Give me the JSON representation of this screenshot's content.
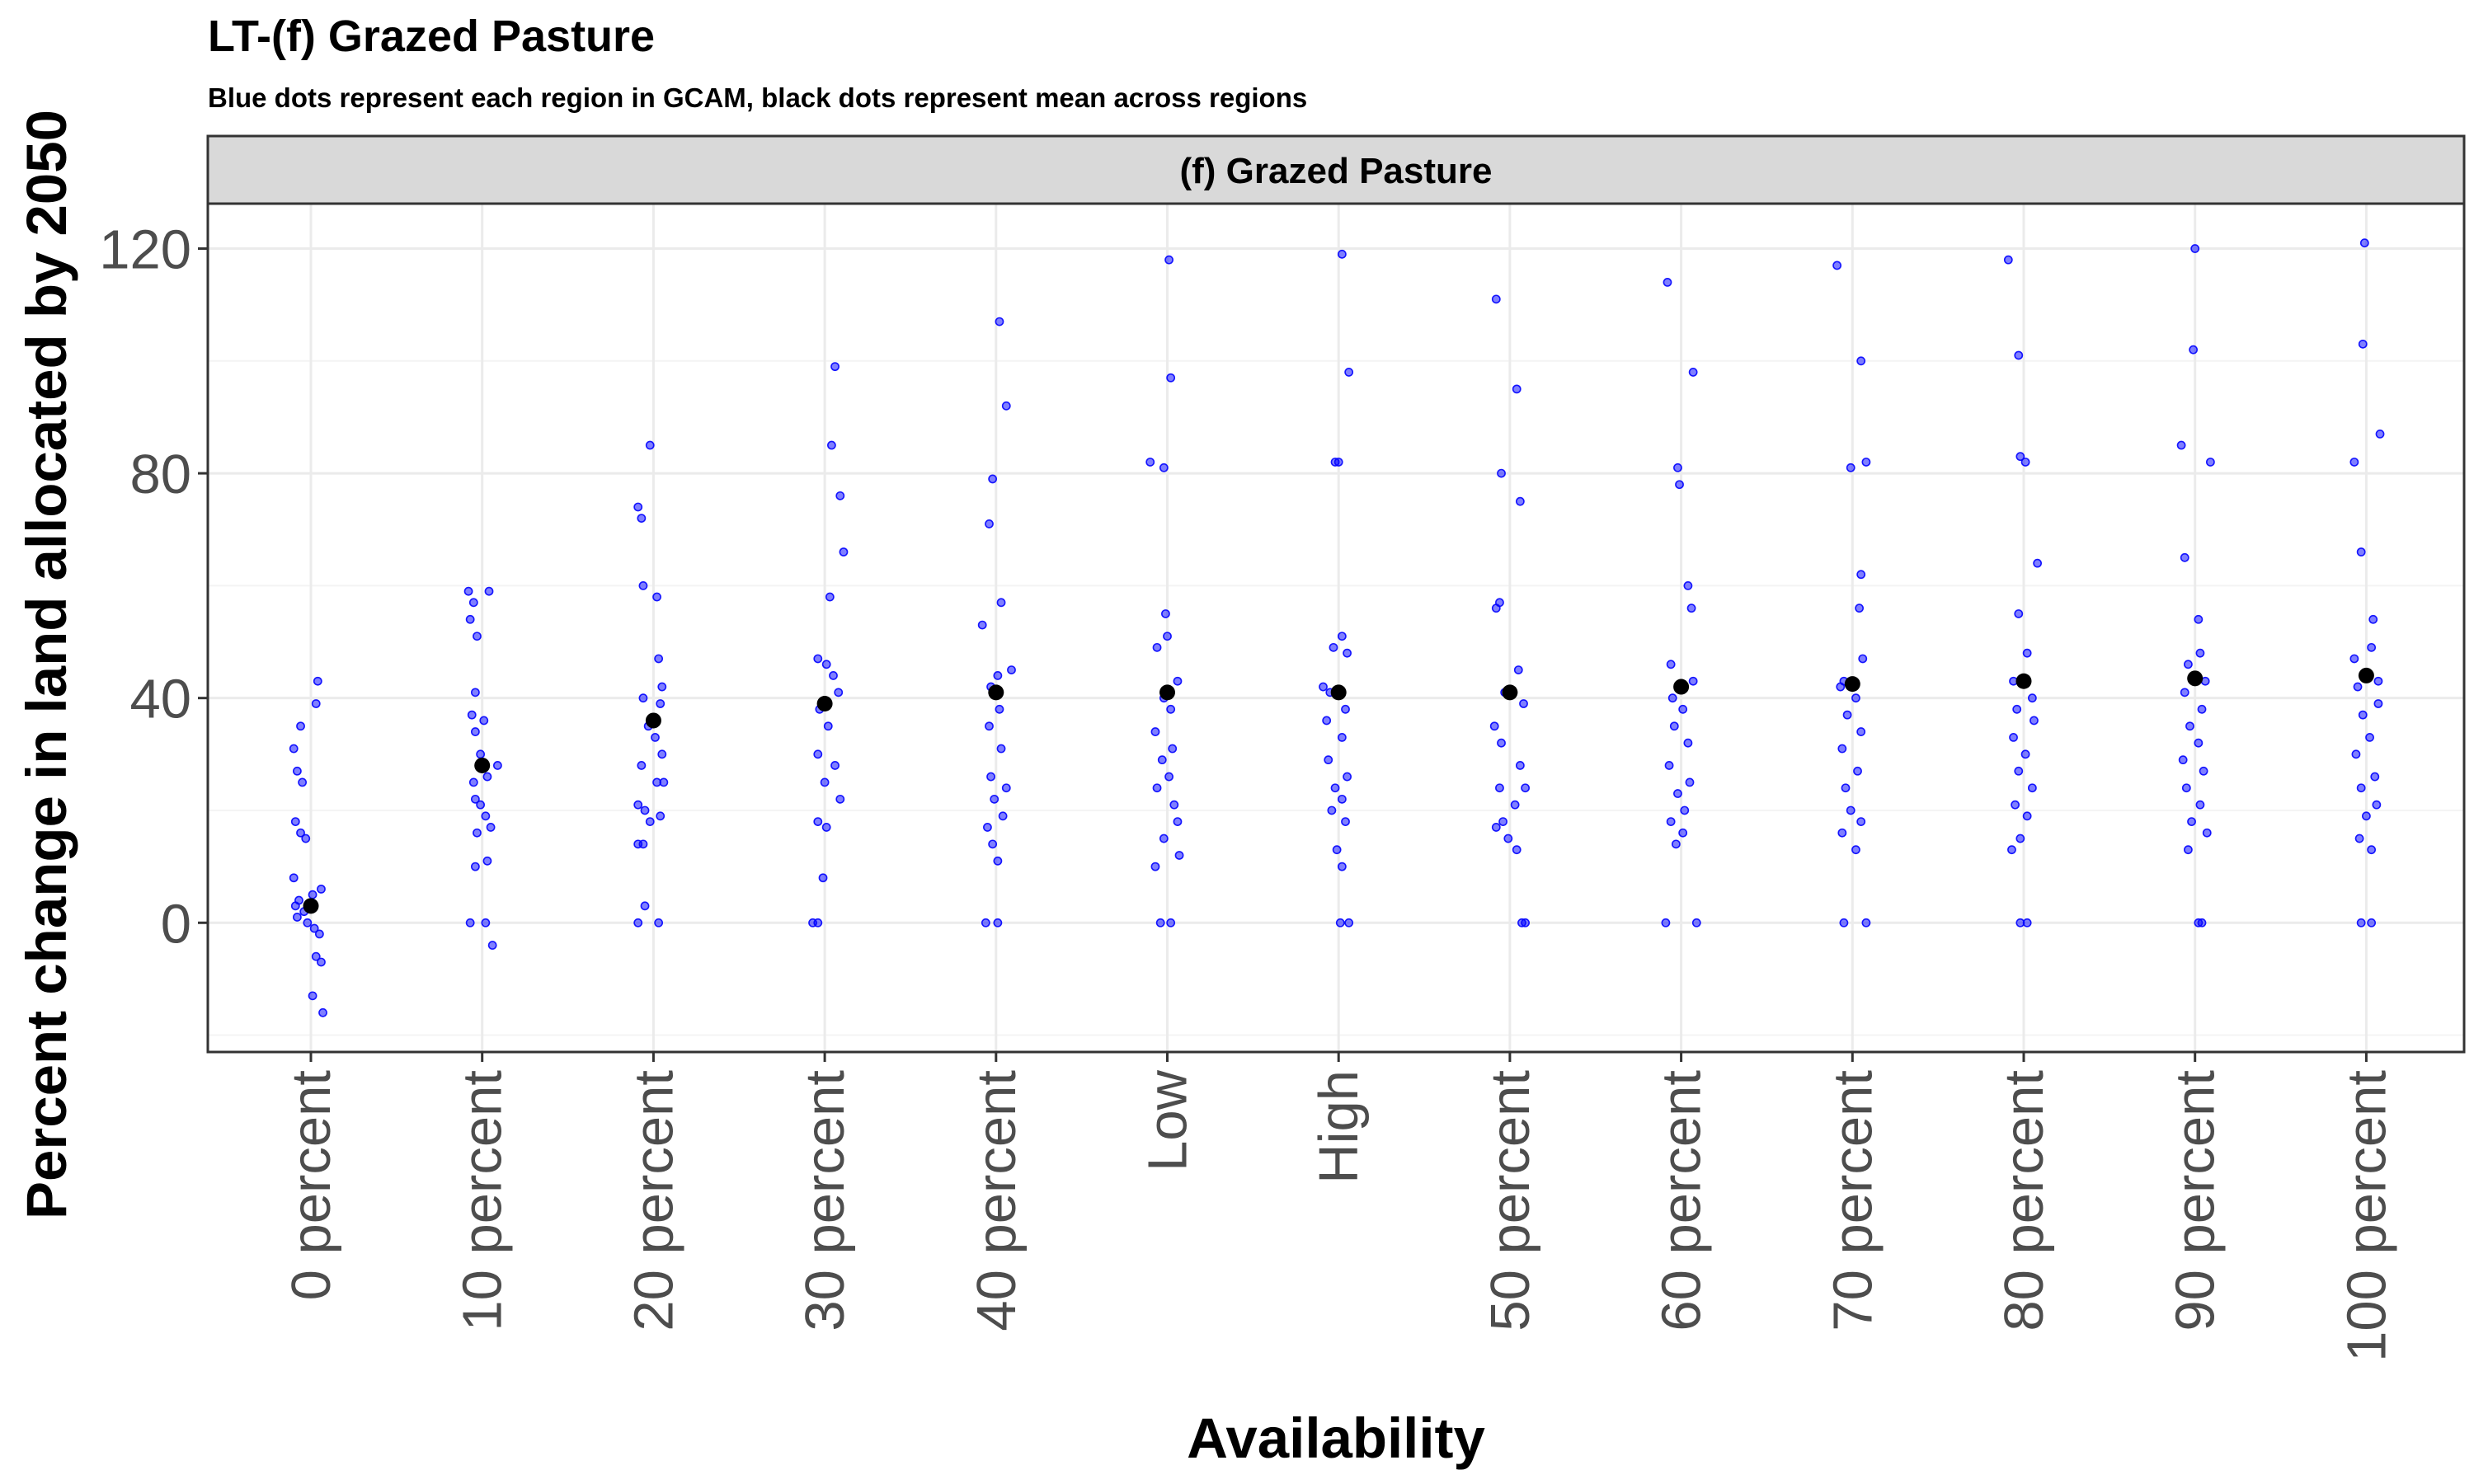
{
  "chart_data": {
    "type": "scatter",
    "title": "LT-(f) Grazed Pasture",
    "subtitle": "Blue dots represent each region in GCAM, black dots represent mean across regions",
    "facet_label": "(f) Grazed Pasture",
    "xlabel": "Availability",
    "ylabel": "Percent change in land allocated by 2050",
    "ylim": [
      -23,
      128
    ],
    "y_ticks": [
      0,
      40,
      80,
      120
    ],
    "grid": true,
    "categories": [
      "0 percent",
      "10 percent",
      "20 percent",
      "30 percent",
      "40 percent",
      "Low",
      "High",
      "50 percent",
      "60 percent",
      "70 percent",
      "80 percent",
      "90 percent",
      "100 percent"
    ],
    "colors": {
      "region_points": "#0000ff",
      "mean_points": "#000000",
      "strip_fill": "#d9d9d9",
      "grid_major": "#ebebeb",
      "grid_minor": "#f4f4f4"
    },
    "series": [
      {
        "name": "Blue dots represent each region in GCAM",
        "role": "regions",
        "points": [
          [
            -0.1,
            31
          ],
          [
            -0.08,
            27
          ],
          [
            -0.05,
            25
          ],
          [
            -0.09,
            18
          ],
          [
            -0.06,
            16
          ],
          [
            -0.03,
            15
          ],
          [
            -0.1,
            8
          ],
          [
            -0.07,
            4
          ],
          [
            -0.09,
            3
          ],
          [
            -0.04,
            2
          ],
          [
            -0.08,
            1
          ],
          [
            -0.02,
            0
          ],
          [
            0.02,
            -1
          ],
          [
            0.05,
            -2
          ],
          [
            0.03,
            -6
          ],
          [
            0.06,
            -7
          ],
          [
            0.01,
            -13
          ],
          [
            0.07,
            -16
          ],
          [
            0.03,
            39
          ],
          [
            0.04,
            43
          ],
          [
            -0.06,
            35
          ],
          [
            0.01,
            5
          ],
          [
            0.06,
            6
          ],
          [
            0.92,
            59
          ],
          [
            0.95,
            57
          ],
          [
            0.93,
            54
          ],
          [
            0.97,
            51
          ],
          [
            1.04,
            59
          ],
          [
            0.96,
            41
          ],
          [
            0.94,
            37
          ],
          [
            1.01,
            36
          ],
          [
            0.96,
            34
          ],
          [
            0.99,
            30
          ],
          [
            1.03,
            26
          ],
          [
            0.95,
            25
          ],
          [
            1.09,
            28
          ],
          [
            0.96,
            22
          ],
          [
            0.99,
            21
          ],
          [
            1.02,
            19
          ],
          [
            1.05,
            17
          ],
          [
            0.97,
            16
          ],
          [
            1.03,
            11
          ],
          [
            0.96,
            10
          ],
          [
            0.93,
            0
          ],
          [
            1.02,
            0
          ],
          [
            1.06,
            -4
          ],
          [
            1.91,
            74
          ],
          [
            1.93,
            72
          ],
          [
            1.94,
            60
          ],
          [
            2.02,
            58
          ],
          [
            1.98,
            85
          ],
          [
            2.03,
            47
          ],
          [
            2.05,
            42
          ],
          [
            1.94,
            40
          ],
          [
            2.04,
            39
          ],
          [
            1.97,
            35
          ],
          [
            2.01,
            33
          ],
          [
            2.05,
            30
          ],
          [
            1.93,
            28
          ],
          [
            2.02,
            25
          ],
          [
            2.06,
            25
          ],
          [
            1.91,
            21
          ],
          [
            1.95,
            20
          ],
          [
            1.98,
            18
          ],
          [
            2.04,
            19
          ],
          [
            1.94,
            14
          ],
          [
            1.91,
            14
          ],
          [
            1.95,
            3
          ],
          [
            1.91,
            0
          ],
          [
            2.03,
            0
          ],
          [
            3.06,
            99
          ],
          [
            3.04,
            85
          ],
          [
            3.09,
            76
          ],
          [
            3.11,
            66
          ],
          [
            3.03,
            58
          ],
          [
            2.96,
            47
          ],
          [
            3.01,
            46
          ],
          [
            3.05,
            44
          ],
          [
            3.08,
            41
          ],
          [
            2.97,
            38
          ],
          [
            3.02,
            35
          ],
          [
            2.96,
            30
          ],
          [
            3.06,
            28
          ],
          [
            3.0,
            25
          ],
          [
            3.09,
            22
          ],
          [
            2.96,
            18
          ],
          [
            3.01,
            17
          ],
          [
            2.99,
            8
          ],
          [
            2.93,
            0
          ],
          [
            2.96,
            0
          ],
          [
            4.02,
            107
          ],
          [
            4.06,
            92
          ],
          [
            3.98,
            79
          ],
          [
            3.96,
            71
          ],
          [
            4.03,
            57
          ],
          [
            3.92,
            53
          ],
          [
            4.01,
            44
          ],
          [
            4.09,
            45
          ],
          [
            3.97,
            42
          ],
          [
            4.02,
            38
          ],
          [
            3.96,
            35
          ],
          [
            4.03,
            31
          ],
          [
            3.97,
            26
          ],
          [
            4.06,
            24
          ],
          [
            3.99,
            22
          ],
          [
            4.04,
            19
          ],
          [
            3.95,
            17
          ],
          [
            3.98,
            14
          ],
          [
            4.01,
            11
          ],
          [
            3.94,
            0
          ],
          [
            4.01,
            0
          ],
          [
            5.01,
            118
          ],
          [
            5.02,
            97
          ],
          [
            4.9,
            82
          ],
          [
            4.98,
            81
          ],
          [
            4.99,
            55
          ],
          [
            4.94,
            49
          ],
          [
            5.0,
            51
          ],
          [
            5.06,
            43
          ],
          [
            4.98,
            40
          ],
          [
            5.02,
            38
          ],
          [
            4.93,
            34
          ],
          [
            5.03,
            31
          ],
          [
            4.97,
            29
          ],
          [
            5.01,
            26
          ],
          [
            4.94,
            24
          ],
          [
            5.04,
            21
          ],
          [
            5.06,
            18
          ],
          [
            4.98,
            15
          ],
          [
            5.07,
            12
          ],
          [
            4.93,
            10
          ],
          [
            4.96,
            0
          ],
          [
            5.02,
            0
          ],
          [
            6.02,
            119
          ],
          [
            6.06,
            98
          ],
          [
            5.98,
            82
          ],
          [
            6.0,
            82
          ],
          [
            5.97,
            49
          ],
          [
            6.02,
            51
          ],
          [
            6.05,
            48
          ],
          [
            5.91,
            42
          ],
          [
            5.95,
            41
          ],
          [
            6.04,
            38
          ],
          [
            5.93,
            36
          ],
          [
            6.02,
            33
          ],
          [
            5.94,
            29
          ],
          [
            6.05,
            26
          ],
          [
            5.98,
            24
          ],
          [
            6.02,
            22
          ],
          [
            5.96,
            20
          ],
          [
            6.04,
            18
          ],
          [
            5.99,
            13
          ],
          [
            6.02,
            10
          ],
          [
            6.01,
            0
          ],
          [
            6.06,
            0
          ],
          [
            6.92,
            111
          ],
          [
            7.04,
            95
          ],
          [
            6.95,
            80
          ],
          [
            7.06,
            75
          ],
          [
            6.94,
            57
          ],
          [
            6.92,
            56
          ],
          [
            7.05,
            45
          ],
          [
            6.97,
            41
          ],
          [
            7.08,
            39
          ],
          [
            6.91,
            35
          ],
          [
            6.95,
            32
          ],
          [
            7.06,
            28
          ],
          [
            7.09,
            24
          ],
          [
            6.94,
            24
          ],
          [
            7.03,
            21
          ],
          [
            6.96,
            18
          ],
          [
            6.92,
            17
          ],
          [
            6.99,
            15
          ],
          [
            7.04,
            13
          ],
          [
            7.07,
            0
          ],
          [
            7.09,
            0
          ],
          [
            7.92,
            114
          ],
          [
            8.07,
            98
          ],
          [
            7.98,
            81
          ],
          [
            7.99,
            78
          ],
          [
            8.04,
            60
          ],
          [
            8.06,
            56
          ],
          [
            7.94,
            46
          ],
          [
            8.07,
            43
          ],
          [
            7.95,
            40
          ],
          [
            8.01,
            38
          ],
          [
            7.96,
            35
          ],
          [
            8.04,
            32
          ],
          [
            7.93,
            28
          ],
          [
            8.05,
            25
          ],
          [
            7.98,
            23
          ],
          [
            8.02,
            20
          ],
          [
            7.94,
            18
          ],
          [
            8.01,
            16
          ],
          [
            7.97,
            14
          ],
          [
            7.91,
            0
          ],
          [
            8.09,
            0
          ],
          [
            8.91,
            117
          ],
          [
            9.05,
            100
          ],
          [
            8.99,
            81
          ],
          [
            9.08,
            82
          ],
          [
            9.05,
            62
          ],
          [
            9.04,
            56
          ],
          [
            8.95,
            43
          ],
          [
            9.06,
            47
          ],
          [
            8.93,
            42
          ],
          [
            9.02,
            40
          ],
          [
            8.97,
            37
          ],
          [
            9.05,
            34
          ],
          [
            8.94,
            31
          ],
          [
            9.03,
            27
          ],
          [
            8.96,
            24
          ],
          [
            8.99,
            20
          ],
          [
            9.05,
            18
          ],
          [
            8.94,
            16
          ],
          [
            9.02,
            13
          ],
          [
            8.95,
            0
          ],
          [
            9.08,
            0
          ],
          [
            9.91,
            118
          ],
          [
            9.97,
            101
          ],
          [
            9.98,
            83
          ],
          [
            10.01,
            82
          ],
          [
            10.08,
            64
          ],
          [
            9.97,
            55
          ],
          [
            10.02,
            48
          ],
          [
            9.94,
            43
          ],
          [
            10.05,
            40
          ],
          [
            9.96,
            38
          ],
          [
            10.06,
            36
          ],
          [
            9.94,
            33
          ],
          [
            10.01,
            30
          ],
          [
            9.97,
            27
          ],
          [
            10.05,
            24
          ],
          [
            9.95,
            21
          ],
          [
            10.02,
            19
          ],
          [
            9.98,
            15
          ],
          [
            9.93,
            13
          ],
          [
            9.98,
            0
          ],
          [
            10.02,
            0
          ],
          [
            11.0,
            120
          ],
          [
            10.99,
            102
          ],
          [
            11.09,
            82
          ],
          [
            10.92,
            85
          ],
          [
            10.94,
            65
          ],
          [
            11.02,
            54
          ],
          [
            11.03,
            48
          ],
          [
            10.96,
            46
          ],
          [
            11.06,
            43
          ],
          [
            10.94,
            41
          ],
          [
            11.04,
            38
          ],
          [
            10.97,
            35
          ],
          [
            11.02,
            32
          ],
          [
            10.93,
            29
          ],
          [
            11.05,
            27
          ],
          [
            10.95,
            24
          ],
          [
            11.03,
            21
          ],
          [
            10.98,
            18
          ],
          [
            11.07,
            16
          ],
          [
            10.96,
            13
          ],
          [
            11.02,
            0
          ],
          [
            11.04,
            0
          ],
          [
            11.99,
            121
          ],
          [
            11.98,
            103
          ],
          [
            12.08,
            87
          ],
          [
            11.93,
            82
          ],
          [
            11.97,
            66
          ],
          [
            12.04,
            54
          ],
          [
            12.03,
            49
          ],
          [
            11.93,
            47
          ],
          [
            12.07,
            43
          ],
          [
            11.95,
            42
          ],
          [
            12.07,
            39
          ],
          [
            11.98,
            37
          ],
          [
            12.02,
            33
          ],
          [
            11.94,
            30
          ],
          [
            12.05,
            26
          ],
          [
            11.97,
            24
          ],
          [
            12.06,
            21
          ],
          [
            12.0,
            19
          ],
          [
            11.96,
            15
          ],
          [
            12.03,
            13
          ],
          [
            11.97,
            0
          ],
          [
            12.03,
            0
          ]
        ]
      },
      {
        "name": "black dots represent mean across regions",
        "role": "means",
        "points": [
          [
            0,
            3
          ],
          [
            1,
            28
          ],
          [
            2,
            36
          ],
          [
            3,
            39
          ],
          [
            4,
            41
          ],
          [
            5,
            41
          ],
          [
            6,
            41
          ],
          [
            7,
            41
          ],
          [
            8,
            42
          ],
          [
            9,
            42.5
          ],
          [
            10,
            43
          ],
          [
            11,
            43.5
          ],
          [
            12,
            44
          ]
        ]
      }
    ]
  }
}
